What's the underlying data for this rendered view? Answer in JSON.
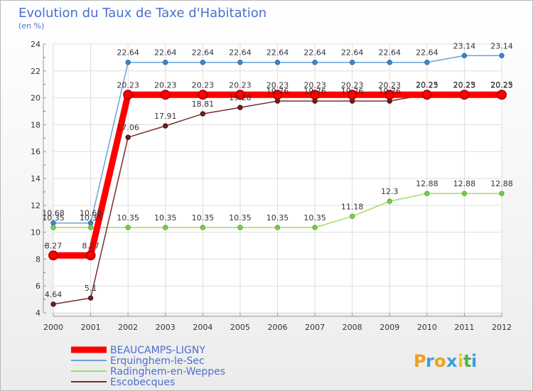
{
  "chart_data": {
    "type": "line",
    "title": "Evolution du Taux de Taxe d'Habitation",
    "subtitle": "(en %)",
    "xlabel": "",
    "ylabel": "",
    "x": [
      "2000",
      "2001",
      "2002",
      "2003",
      "2004",
      "2005",
      "2006",
      "2007",
      "2008",
      "2009",
      "2010",
      "2011",
      "2012"
    ],
    "ylim": [
      4,
      24
    ],
    "yticks": [
      4,
      6,
      8,
      10,
      12,
      14,
      16,
      18,
      20,
      22,
      24
    ],
    "grid": true,
    "legend_position": "bottom-left",
    "series": [
      {
        "name": "BEAUCAMPS-LIGNY",
        "color": "#ff0000",
        "values": [
          8.27,
          8.27,
          20.23,
          20.23,
          20.23,
          20.23,
          20.23,
          20.23,
          20.23,
          20.23,
          20.23,
          20.23,
          20.23
        ],
        "labels": [
          "8.27",
          "8.27",
          "20.23",
          "20.23",
          "20.23",
          "20.23",
          "20.23",
          "20.23",
          "20.23",
          "20.23",
          "20.23",
          "20.23",
          "20.23"
        ]
      },
      {
        "name": "Erquinghem-le-Sec",
        "color": "#6ba3d6",
        "values": [
          10.68,
          10.68,
          22.64,
          22.64,
          22.64,
          22.64,
          22.64,
          22.64,
          22.64,
          22.64,
          22.64,
          23.14,
          23.14
        ],
        "labels": [
          "10.68",
          "10.68",
          "22.64",
          "22.64",
          "22.64",
          "22.64",
          "22.64",
          "22.64",
          "22.64",
          "22.64",
          "22.64",
          "23.14",
          "23.14"
        ]
      },
      {
        "name": "Radinghem-en-Weppes",
        "color": "#9fde6a",
        "values": [
          10.35,
          10.35,
          10.35,
          10.35,
          10.35,
          10.35,
          10.35,
          10.35,
          11.18,
          12.3,
          12.88,
          12.88,
          12.88
        ],
        "labels": [
          "10.35",
          "10.35",
          "10.35",
          "10.35",
          "10.35",
          "10.35",
          "10.35",
          "10.35",
          "11.18",
          "12.3",
          "12.88",
          "12.88",
          "12.88"
        ]
      },
      {
        "name": "Escobecques",
        "color": "#7b2c2c",
        "values": [
          4.64,
          5.1,
          17.06,
          17.91,
          18.81,
          19.28,
          19.76,
          19.76,
          19.76,
          19.76,
          20.25,
          20.25,
          20.25
        ],
        "labels": [
          "4.64",
          "5.1",
          "17.06",
          "17.91",
          "18.81",
          "19.28",
          "19.76",
          "19.76",
          "19.76",
          "19.76",
          "20.25",
          "20.25",
          "20.25"
        ]
      }
    ]
  },
  "brand": {
    "letters": [
      "P",
      "r",
      "o",
      "x",
      "i",
      "t",
      "i"
    ],
    "colors": [
      "#f0a020",
      "#3aa0e0",
      "#f0a020",
      "#3aa0e0",
      "#f0c020",
      "#50b050",
      "#3aa0e0"
    ]
  }
}
